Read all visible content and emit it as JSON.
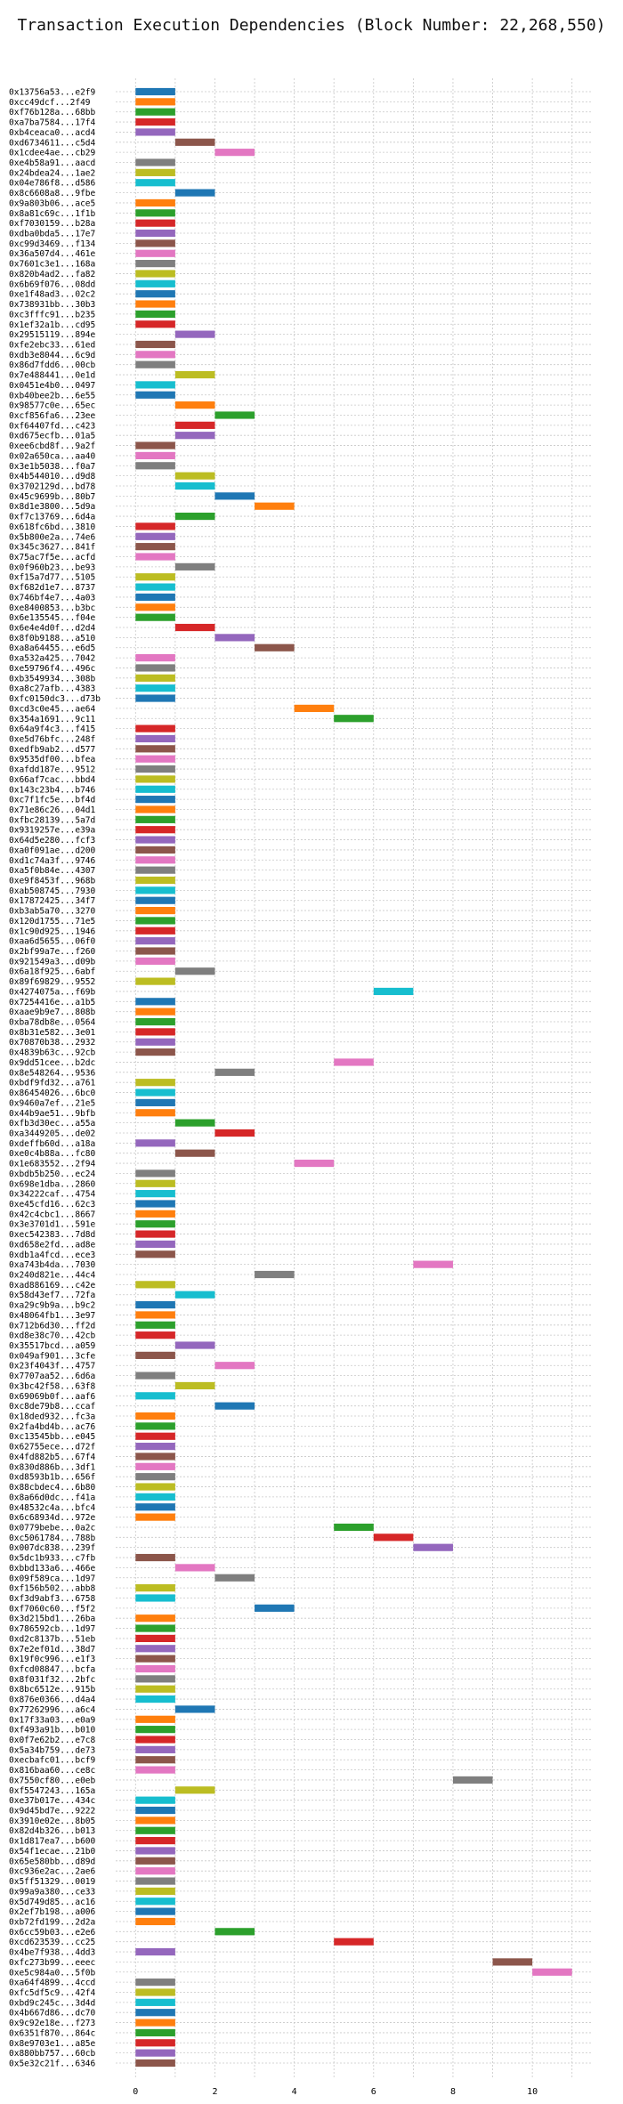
{
  "chart_data": {
    "type": "bar",
    "orientation": "horizontal",
    "title": "Transaction Execution Dependencies (Block Number: 22,268,550)",
    "xlabel": "",
    "ylabel": "",
    "xlim": [
      -0.5,
      11.5
    ],
    "xticks": [
      0,
      2,
      4,
      6,
      8,
      10
    ],
    "grid": true,
    "palette": [
      "#1f77b4",
      "#ff7f0e",
      "#2ca02c",
      "#d62728",
      "#9467bd",
      "#8c564b",
      "#e377c2",
      "#7f7f7f",
      "#bcbd22",
      "#17becf"
    ],
    "transactions": [
      {
        "hash": "0x13756a53...e2f9",
        "start": 0,
        "duration": 1
      },
      {
        "hash": "0xcc49dcf...2f49",
        "start": 0,
        "duration": 1
      },
      {
        "hash": "0xf76b128a...68bb",
        "start": 0,
        "duration": 1
      },
      {
        "hash": "0xa7ba7584...17f4",
        "start": 0,
        "duration": 1
      },
      {
        "hash": "0xb4ceaca0...acd4",
        "start": 0,
        "duration": 1
      },
      {
        "hash": "0xd6734611...c5d4",
        "start": 1,
        "duration": 1
      },
      {
        "hash": "0x1cdee4ae...cb29",
        "start": 2,
        "duration": 1
      },
      {
        "hash": "0xe4b58a91...aacd",
        "start": 0,
        "duration": 1
      },
      {
        "hash": "0x24bdea24...1ae2",
        "start": 0,
        "duration": 1
      },
      {
        "hash": "0x04e786f8...d586",
        "start": 0,
        "duration": 1
      },
      {
        "hash": "0x8c6608a8...9fbe",
        "start": 1,
        "duration": 1
      },
      {
        "hash": "0x9a803b06...ace5",
        "start": 0,
        "duration": 1
      },
      {
        "hash": "0x8a81c69c...1f1b",
        "start": 0,
        "duration": 1
      },
      {
        "hash": "0xf7030159...b28a",
        "start": 0,
        "duration": 1
      },
      {
        "hash": "0xdba0bda5...17e7",
        "start": 0,
        "duration": 1
      },
      {
        "hash": "0xc99d3469...f134",
        "start": 0,
        "duration": 1
      },
      {
        "hash": "0x36a507d4...461e",
        "start": 0,
        "duration": 1
      },
      {
        "hash": "0x7601c3e1...168a",
        "start": 0,
        "duration": 1
      },
      {
        "hash": "0x820b4ad2...fa82",
        "start": 0,
        "duration": 1
      },
      {
        "hash": "0x6b69f076...08dd",
        "start": 0,
        "duration": 1
      },
      {
        "hash": "0xe1f48ad3...02c2",
        "start": 0,
        "duration": 1
      },
      {
        "hash": "0x738931bb...30b3",
        "start": 0,
        "duration": 1
      },
      {
        "hash": "0xc3fffc91...b235",
        "start": 0,
        "duration": 1
      },
      {
        "hash": "0x1ef32a1b...cd95",
        "start": 0,
        "duration": 1
      },
      {
        "hash": "0x29515119...894e",
        "start": 1,
        "duration": 1
      },
      {
        "hash": "0xfe2ebc33...61ed",
        "start": 0,
        "duration": 1
      },
      {
        "hash": "0xdb3e8044...6c9d",
        "start": 0,
        "duration": 1
      },
      {
        "hash": "0x86d7fdd6...00cb",
        "start": 0,
        "duration": 1
      },
      {
        "hash": "0x7e488441...0e1d",
        "start": 1,
        "duration": 1
      },
      {
        "hash": "0x0451e4b0...0497",
        "start": 0,
        "duration": 1
      },
      {
        "hash": "0xb40bee2b...6e55",
        "start": 0,
        "duration": 1
      },
      {
        "hash": "0x98577c0e...65ec",
        "start": 1,
        "duration": 1
      },
      {
        "hash": "0xcf856fa6...23ee",
        "start": 2,
        "duration": 1
      },
      {
        "hash": "0xf64407fd...c423",
        "start": 1,
        "duration": 1
      },
      {
        "hash": "0xd675ecfb...01a5",
        "start": 1,
        "duration": 1
      },
      {
        "hash": "0xee6cbd8f...9a2f",
        "start": 0,
        "duration": 1
      },
      {
        "hash": "0x02a650ca...aa40",
        "start": 0,
        "duration": 1
      },
      {
        "hash": "0x3e1b5038...f0a7",
        "start": 0,
        "duration": 1
      },
      {
        "hash": "0x4b544010...d9d8",
        "start": 1,
        "duration": 1
      },
      {
        "hash": "0x3702129d...bd78",
        "start": 1,
        "duration": 1
      },
      {
        "hash": "0x45c9699b...80b7",
        "start": 2,
        "duration": 1
      },
      {
        "hash": "0x8d1e3800...5d9a",
        "start": 3,
        "duration": 1
      },
      {
        "hash": "0xf7c13769...6d4a",
        "start": 1,
        "duration": 1
      },
      {
        "hash": "0x618fc6bd...3810",
        "start": 0,
        "duration": 1
      },
      {
        "hash": "0x5b800e2a...74e6",
        "start": 0,
        "duration": 1
      },
      {
        "hash": "0x345c3627...841f",
        "start": 0,
        "duration": 1
      },
      {
        "hash": "0x75ac7f5e...acfd",
        "start": 0,
        "duration": 1
      },
      {
        "hash": "0x0f960b23...be93",
        "start": 1,
        "duration": 1
      },
      {
        "hash": "0xf15a7d77...5105",
        "start": 0,
        "duration": 1
      },
      {
        "hash": "0xf682d1e7...8737",
        "start": 0,
        "duration": 1
      },
      {
        "hash": "0x746bf4e7...4a03",
        "start": 0,
        "duration": 1
      },
      {
        "hash": "0xe8400853...b3bc",
        "start": 0,
        "duration": 1
      },
      {
        "hash": "0x6e135545...f04e",
        "start": 0,
        "duration": 1
      },
      {
        "hash": "0x6e4e4d0f...d2d4",
        "start": 1,
        "duration": 1
      },
      {
        "hash": "0x8f0b9188...a510",
        "start": 2,
        "duration": 1
      },
      {
        "hash": "0xa8a64455...e6d5",
        "start": 3,
        "duration": 1
      },
      {
        "hash": "0xa532a425...7042",
        "start": 0,
        "duration": 1
      },
      {
        "hash": "0xe59796f4...496c",
        "start": 0,
        "duration": 1
      },
      {
        "hash": "0xb3549934...308b",
        "start": 0,
        "duration": 1
      },
      {
        "hash": "0xa8c27afb...4383",
        "start": 0,
        "duration": 1
      },
      {
        "hash": "0xfc0150dc3...d73b",
        "start": 0,
        "duration": 1
      },
      {
        "hash": "0xcd3c0e45...ae64",
        "start": 4,
        "duration": 1
      },
      {
        "hash": "0x354a1691...9c11",
        "start": 5,
        "duration": 1
      },
      {
        "hash": "0x64a9f4c3...f415",
        "start": 0,
        "duration": 1
      },
      {
        "hash": "0xe5d76bfc...248f",
        "start": 0,
        "duration": 1
      },
      {
        "hash": "0xedfb9ab2...d577",
        "start": 0,
        "duration": 1
      },
      {
        "hash": "0x9535df00...bfea",
        "start": 0,
        "duration": 1
      },
      {
        "hash": "0xafdd187e...9512",
        "start": 0,
        "duration": 1
      },
      {
        "hash": "0x66af7cac...bbd4",
        "start": 0,
        "duration": 1
      },
      {
        "hash": "0x143c23b4...b746",
        "start": 0,
        "duration": 1
      },
      {
        "hash": "0xc7f1fc5e...bf4d",
        "start": 0,
        "duration": 1
      },
      {
        "hash": "0x71e86c26...04d1",
        "start": 0,
        "duration": 1
      },
      {
        "hash": "0xfbc28139...5a7d",
        "start": 0,
        "duration": 1
      },
      {
        "hash": "0x9319257e...e39a",
        "start": 0,
        "duration": 1
      },
      {
        "hash": "0x64d5e280...fcf3",
        "start": 0,
        "duration": 1
      },
      {
        "hash": "0xa0f091ae...d200",
        "start": 0,
        "duration": 1
      },
      {
        "hash": "0xd1c74a3f...9746",
        "start": 0,
        "duration": 1
      },
      {
        "hash": "0xa5f0b84e...4307",
        "start": 0,
        "duration": 1
      },
      {
        "hash": "0xe9f8453f...968b",
        "start": 0,
        "duration": 1
      },
      {
        "hash": "0xab508745...7930",
        "start": 0,
        "duration": 1
      },
      {
        "hash": "0x17872425...34f7",
        "start": 0,
        "duration": 1
      },
      {
        "hash": "0xb3ab5a70...3270",
        "start": 0,
        "duration": 1
      },
      {
        "hash": "0x120d1755...71e5",
        "start": 0,
        "duration": 1
      },
      {
        "hash": "0x1c90d925...1946",
        "start": 0,
        "duration": 1
      },
      {
        "hash": "0xaa6d5655...06f0",
        "start": 0,
        "duration": 1
      },
      {
        "hash": "0x2bf99a7e...f260",
        "start": 0,
        "duration": 1
      },
      {
        "hash": "0x921549a3...d09b",
        "start": 0,
        "duration": 1
      },
      {
        "hash": "0x6a18f925...6abf",
        "start": 1,
        "duration": 1
      },
      {
        "hash": "0x89f69829...9552",
        "start": 0,
        "duration": 1
      },
      {
        "hash": "0x4274075a...f69b",
        "start": 6,
        "duration": 1
      },
      {
        "hash": "0x7254416e...a1b5",
        "start": 0,
        "duration": 1
      },
      {
        "hash": "0xaae9b9e7...808b",
        "start": 0,
        "duration": 1
      },
      {
        "hash": "0xba78db8e...0564",
        "start": 0,
        "duration": 1
      },
      {
        "hash": "0x8b31e582...3e01",
        "start": 0,
        "duration": 1
      },
      {
        "hash": "0x70870b38...2932",
        "start": 0,
        "duration": 1
      },
      {
        "hash": "0x4839b63c...92cb",
        "start": 0,
        "duration": 1
      },
      {
        "hash": "0x9dd51cee...b2dc",
        "start": 5,
        "duration": 1
      },
      {
        "hash": "0x8e548264...9536",
        "start": 2,
        "duration": 1
      },
      {
        "hash": "0xbdf9fd32...a761",
        "start": 0,
        "duration": 1
      },
      {
        "hash": "0x86454026...6bc0",
        "start": 0,
        "duration": 1
      },
      {
        "hash": "0x9460a7ef...21e5",
        "start": 0,
        "duration": 1
      },
      {
        "hash": "0x44b9ae51...9bfb",
        "start": 0,
        "duration": 1
      },
      {
        "hash": "0xfb3d30ec...a55a",
        "start": 1,
        "duration": 1
      },
      {
        "hash": "0xa3449205...de02",
        "start": 2,
        "duration": 1
      },
      {
        "hash": "0xdeffb60d...a18a",
        "start": 0,
        "duration": 1
      },
      {
        "hash": "0xe0c4b88a...fc80",
        "start": 1,
        "duration": 1
      },
      {
        "hash": "0x1e683552...2f94",
        "start": 4,
        "duration": 1
      },
      {
        "hash": "0xbdb5b250...ec24",
        "start": 0,
        "duration": 1
      },
      {
        "hash": "0x698e1dba...2860",
        "start": 0,
        "duration": 1
      },
      {
        "hash": "0x34222caf...4754",
        "start": 0,
        "duration": 1
      },
      {
        "hash": "0xe45cfd16...62c3",
        "start": 0,
        "duration": 1
      },
      {
        "hash": "0x42c4cbc1...8667",
        "start": 0,
        "duration": 1
      },
      {
        "hash": "0x3e3701d1...591e",
        "start": 0,
        "duration": 1
      },
      {
        "hash": "0xec542383...7d8d",
        "start": 0,
        "duration": 1
      },
      {
        "hash": "0xd658e2fd...ad8e",
        "start": 0,
        "duration": 1
      },
      {
        "hash": "0xdb1a4fcd...ece3",
        "start": 0,
        "duration": 1
      },
      {
        "hash": "0xa743b4da...7030",
        "start": 7,
        "duration": 1
      },
      {
        "hash": "0x240d821e...44c4",
        "start": 3,
        "duration": 1
      },
      {
        "hash": "0xad886169...c42e",
        "start": 0,
        "duration": 1
      },
      {
        "hash": "0x58d43ef7...72fa",
        "start": 1,
        "duration": 1
      },
      {
        "hash": "0xa29c9b9a...b9c2",
        "start": 0,
        "duration": 1
      },
      {
        "hash": "0x48064fb1...3e97",
        "start": 0,
        "duration": 1
      },
      {
        "hash": "0x712b6d30...ff2d",
        "start": 0,
        "duration": 1
      },
      {
        "hash": "0xd8e38c70...42cb",
        "start": 0,
        "duration": 1
      },
      {
        "hash": "0x35517bcd...a059",
        "start": 1,
        "duration": 1
      },
      {
        "hash": "0x049af901...3cfe",
        "start": 0,
        "duration": 1
      },
      {
        "hash": "0x23f4043f...4757",
        "start": 2,
        "duration": 1
      },
      {
        "hash": "0x7707aa52...6d6a",
        "start": 0,
        "duration": 1
      },
      {
        "hash": "0x3bc42f58...63f8",
        "start": 1,
        "duration": 1
      },
      {
        "hash": "0x69069b0f...aaf6",
        "start": 0,
        "duration": 1
      },
      {
        "hash": "0xc8de79b8...ccaf",
        "start": 2,
        "duration": 1
      },
      {
        "hash": "0x18ded932...fc3a",
        "start": 0,
        "duration": 1
      },
      {
        "hash": "0x2fa4bd4b...ac76",
        "start": 0,
        "duration": 1
      },
      {
        "hash": "0xc13545bb...e045",
        "start": 0,
        "duration": 1
      },
      {
        "hash": "0x62755ece...d72f",
        "start": 0,
        "duration": 1
      },
      {
        "hash": "0x4fd882b5...67f4",
        "start": 0,
        "duration": 1
      },
      {
        "hash": "0x830d886b...3df1",
        "start": 0,
        "duration": 1
      },
      {
        "hash": "0xd8593b1b...656f",
        "start": 0,
        "duration": 1
      },
      {
        "hash": "0x88cbdec4...6b80",
        "start": 0,
        "duration": 1
      },
      {
        "hash": "0x8a66d0dc...f41a",
        "start": 0,
        "duration": 1
      },
      {
        "hash": "0x48532c4a...bfc4",
        "start": 0,
        "duration": 1
      },
      {
        "hash": "0x6c68934d...972e",
        "start": 0,
        "duration": 1
      },
      {
        "hash": "0x0779bebe...0a2c",
        "start": 5,
        "duration": 1
      },
      {
        "hash": "0xc5061784...788b",
        "start": 6,
        "duration": 1
      },
      {
        "hash": "0x007dc838...239f",
        "start": 7,
        "duration": 1
      },
      {
        "hash": "0x5dc1b933...c7fb",
        "start": 0,
        "duration": 1
      },
      {
        "hash": "0xbbd133a6...466e",
        "start": 1,
        "duration": 1
      },
      {
        "hash": "0x09f589ca...1d97",
        "start": 2,
        "duration": 1
      },
      {
        "hash": "0xf156b502...abb8",
        "start": 0,
        "duration": 1
      },
      {
        "hash": "0xf3d9abf3...6758",
        "start": 0,
        "duration": 1
      },
      {
        "hash": "0xf7060c60...f5f2",
        "start": 3,
        "duration": 1
      },
      {
        "hash": "0x3d215bd1...26ba",
        "start": 0,
        "duration": 1
      },
      {
        "hash": "0x786592cb...1d97",
        "start": 0,
        "duration": 1
      },
      {
        "hash": "0xd2c8137b...51eb",
        "start": 0,
        "duration": 1
      },
      {
        "hash": "0x7e2ef01d...38d7",
        "start": 0,
        "duration": 1
      },
      {
        "hash": "0x19f0c996...e1f3",
        "start": 0,
        "duration": 1
      },
      {
        "hash": "0xfcd08847...bcfa",
        "start": 0,
        "duration": 1
      },
      {
        "hash": "0x8f031f32...2bfc",
        "start": 0,
        "duration": 1
      },
      {
        "hash": "0x8bc6512e...915b",
        "start": 0,
        "duration": 1
      },
      {
        "hash": "0x876e0366...d4a4",
        "start": 0,
        "duration": 1
      },
      {
        "hash": "0x77262996...a6c4",
        "start": 1,
        "duration": 1
      },
      {
        "hash": "0x17f33a03...e0a9",
        "start": 0,
        "duration": 1
      },
      {
        "hash": "0xf493a91b...b010",
        "start": 0,
        "duration": 1
      },
      {
        "hash": "0x0f7e62b2...e7c8",
        "start": 0,
        "duration": 1
      },
      {
        "hash": "0x5a34b759...de73",
        "start": 0,
        "duration": 1
      },
      {
        "hash": "0xecbafc01...bcf9",
        "start": 0,
        "duration": 1
      },
      {
        "hash": "0x816baa60...ce8c",
        "start": 0,
        "duration": 1
      },
      {
        "hash": "0x7550cf80...e0eb",
        "start": 8,
        "duration": 1
      },
      {
        "hash": "0xf5547243...165a",
        "start": 1,
        "duration": 1
      },
      {
        "hash": "0xe37b017e...434c",
        "start": 0,
        "duration": 1
      },
      {
        "hash": "0x9d45bd7e...9222",
        "start": 0,
        "duration": 1
      },
      {
        "hash": "0x3910e02e...8b05",
        "start": 0,
        "duration": 1
      },
      {
        "hash": "0x82d4b326...b013",
        "start": 0,
        "duration": 1
      },
      {
        "hash": "0x1d817ea7...b600",
        "start": 0,
        "duration": 1
      },
      {
        "hash": "0x54f1ecae...21b0",
        "start": 0,
        "duration": 1
      },
      {
        "hash": "0x65e580bb...d89d",
        "start": 0,
        "duration": 1
      },
      {
        "hash": "0xc936e2ac...2ae6",
        "start": 0,
        "duration": 1
      },
      {
        "hash": "0x5ff51329...0019",
        "start": 0,
        "duration": 1
      },
      {
        "hash": "0x99a9a380...ce33",
        "start": 0,
        "duration": 1
      },
      {
        "hash": "0x5d749d85...ac16",
        "start": 0,
        "duration": 1
      },
      {
        "hash": "0x2ef7b198...a006",
        "start": 0,
        "duration": 1
      },
      {
        "hash": "0xb72fd199...2d2a",
        "start": 0,
        "duration": 1
      },
      {
        "hash": "0x6cc59b03...e2e6",
        "start": 2,
        "duration": 1
      },
      {
        "hash": "0xcd623539...cc25",
        "start": 5,
        "duration": 1
      },
      {
        "hash": "0x4be7f938...4dd3",
        "start": 0,
        "duration": 1
      },
      {
        "hash": "0xfc273b99...eeec",
        "start": 9,
        "duration": 1
      },
      {
        "hash": "0xe5c984a0...5f0b",
        "start": 10,
        "duration": 1
      },
      {
        "hash": "0xa64f4899...4ccd",
        "start": 0,
        "duration": 1
      },
      {
        "hash": "0xfc5df5c9...42f4",
        "start": 0,
        "duration": 1
      },
      {
        "hash": "0xbd9c245c...3d4d",
        "start": 0,
        "duration": 1
      },
      {
        "hash": "0x4b667d86...dc70",
        "start": 0,
        "duration": 1
      },
      {
        "hash": "0x9c92e18e...f273",
        "start": 0,
        "duration": 1
      },
      {
        "hash": "0x6351f870...864c",
        "start": 0,
        "duration": 1
      },
      {
        "hash": "0x8e9703e1...a85e",
        "start": 0,
        "duration": 1
      },
      {
        "hash": "0x880bb757...60cb",
        "start": 0,
        "duration": 1
      },
      {
        "hash": "0x5e32c21f...6346",
        "start": 0,
        "duration": 1
      }
    ]
  }
}
